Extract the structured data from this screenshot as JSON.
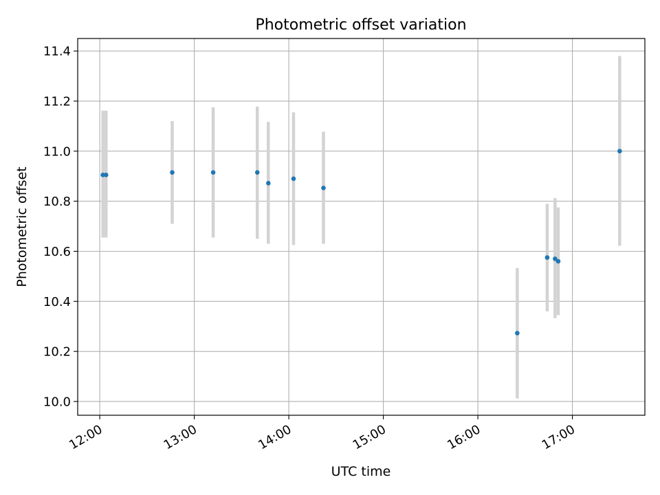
{
  "chart_data": {
    "type": "scatter",
    "title": "Photometric offset variation",
    "xlabel": "UTC time",
    "ylabel": "Photometric offset",
    "x_ticks": [
      "12:00",
      "13:00",
      "14:00",
      "15:00",
      "16:00",
      "17:00"
    ],
    "x_tick_values": [
      "12:00",
      "13:00",
      "14:00",
      "15:00",
      "16:00",
      "17:00"
    ],
    "y_ticks": [
      "10.0",
      "10.2",
      "10.4",
      "10.6",
      "10.8",
      "11.0",
      "11.2",
      "11.4"
    ],
    "xlim": [
      "11:46",
      "17:46"
    ],
    "ylim": [
      9.945,
      11.45
    ],
    "grid": true,
    "colors": {
      "point": "#1f77b4",
      "errorbar": "#d3d3d3",
      "grid": "#b0b0b0"
    },
    "points": [
      {
        "x": "12:02",
        "y": 10.905,
        "ylow": 10.655,
        "yhigh": 11.162
      },
      {
        "x": "12:04",
        "y": 10.905,
        "ylow": 10.655,
        "yhigh": 11.162
      },
      {
        "x": "12:46",
        "y": 10.915,
        "ylow": 10.71,
        "yhigh": 11.12
      },
      {
        "x": "13:12",
        "y": 10.915,
        "ylow": 10.655,
        "yhigh": 11.175
      },
      {
        "x": "13:40",
        "y": 10.915,
        "ylow": 10.65,
        "yhigh": 11.178
      },
      {
        "x": "13:47",
        "y": 10.872,
        "ylow": 10.63,
        "yhigh": 11.117
      },
      {
        "x": "14:03",
        "y": 10.89,
        "ylow": 10.625,
        "yhigh": 11.155
      },
      {
        "x": "14:22",
        "y": 10.853,
        "ylow": 10.63,
        "yhigh": 11.078
      },
      {
        "x": "16:25",
        "y": 10.273,
        "ylow": 10.012,
        "yhigh": 10.533
      },
      {
        "x": "16:44",
        "y": 10.575,
        "ylow": 10.36,
        "yhigh": 10.79
      },
      {
        "x": "16:49",
        "y": 10.57,
        "ylow": 10.333,
        "yhigh": 10.812
      },
      {
        "x": "16:51",
        "y": 10.56,
        "ylow": 10.345,
        "yhigh": 10.775
      },
      {
        "x": "17:30",
        "y": 11.0,
        "ylow": 10.622,
        "yhigh": 11.38
      }
    ]
  }
}
